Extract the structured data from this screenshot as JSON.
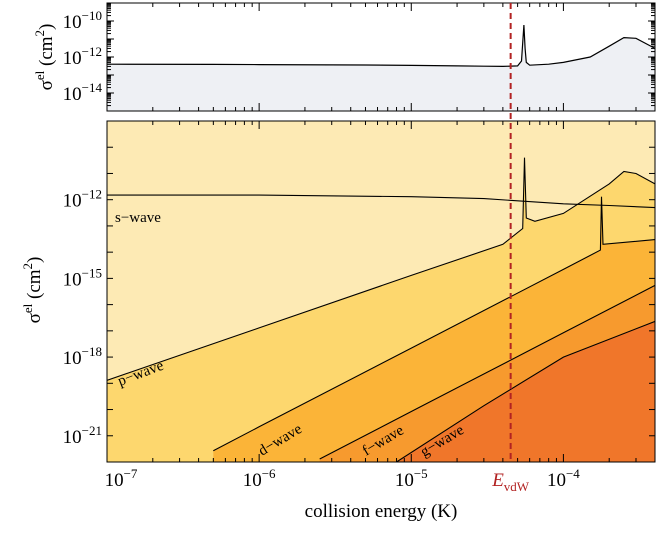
{
  "chart_data": [
    {
      "type": "area",
      "panel": "top",
      "ylabel": "σel (cm2)",
      "yscale": "log",
      "xscale": "log",
      "xlim": [
        1e-07,
        0.0004
      ],
      "ylim": [
        1e-15,
        1e-09
      ],
      "yticks": [
        {
          "value": 1e-10,
          "base": "10",
          "exp": "−10"
        },
        {
          "value": 1e-12,
          "base": "10",
          "exp": "−12"
        },
        {
          "value": 1e-14,
          "base": "10",
          "exp": "−14"
        }
      ],
      "series": [
        {
          "x": [
            1e-07,
            5e-07,
            1e-06,
            5e-06,
            1e-05,
            2e-05,
            3e-05,
            4e-05,
            5e-05,
            5.3e-05,
            5.5e-05,
            5.6e-05,
            5.7e-05,
            6e-05,
            8e-05,
            0.0001,
            0.00015,
            0.0002,
            0.00025,
            0.0003,
            0.0004
          ],
          "y": [
            4e-13,
            3.9e-13,
            3.8e-13,
            3.6e-13,
            3.4e-13,
            3.2e-13,
            3.1e-13,
            3e-13,
            3.2e-13,
            6e-13,
            6e-11,
            3e-12,
            5e-13,
            3.5e-13,
            4e-13,
            5e-13,
            1e-12,
            4e-12,
            1.2e-11,
            1.1e-11,
            3e-12
          ]
        }
      ],
      "colors": {
        "fill": "#eef0f4",
        "line": "#000000"
      }
    },
    {
      "type": "area",
      "panel": "bottom",
      "ylabel": "σel (cm2)",
      "xlabel": "collision energy (K)",
      "yscale": "log",
      "xscale": "log",
      "xlim": [
        1e-07,
        0.0004
      ],
      "ylim": [
        1e-22,
        1e-09
      ],
      "yticks": [
        {
          "value": 1e-12,
          "base": "10",
          "exp": "−12"
        },
        {
          "value": 1e-15,
          "base": "10",
          "exp": "−15"
        },
        {
          "value": 1e-18,
          "base": "10",
          "exp": "−18"
        },
        {
          "value": 1e-21,
          "base": "10",
          "exp": "−21"
        }
      ],
      "xticks": [
        {
          "value": 1e-07,
          "base": "10",
          "exp": "−7"
        },
        {
          "value": 1e-06,
          "base": "10",
          "exp": "−6"
        },
        {
          "value": 1e-05,
          "base": "10",
          "exp": "−5"
        },
        {
          "value": 0.0001,
          "base": "10",
          "exp": "−4"
        }
      ],
      "series": [
        {
          "name": "s−wave",
          "x": [
            1e-07,
            1e-06,
            1e-05,
            3e-05,
            0.0001,
            0.0002,
            0.0004
          ],
          "y": [
            1.5e-12,
            1.5e-12,
            1.3e-12,
            1.1e-12,
            7e-13,
            6e-13,
            5e-13
          ]
        },
        {
          "name": "p−wave",
          "x": [
            1e-07,
            1e-06,
            1e-05,
            4e-05,
            5.4e-05,
            5.55e-05,
            5.7e-05,
            6.5e-05,
            0.0001,
            0.0002,
            0.00025,
            0.0003,
            0.0004
          ],
          "y": [
            1.3e-19,
            1.3e-17,
            1.3e-15,
            2e-14,
            8e-14,
            4e-11,
            2e-13,
            1.5e-13,
            3e-13,
            4e-12,
            1.2e-11,
            1e-11,
            4e-12
          ]
        },
        {
          "name": "d−wave",
          "x": [
            5e-07,
            1e-06,
            1e-05,
            0.0001,
            0.000175,
            0.000178,
            0.000182,
            0.0004
          ],
          "y": [
            2.7e-22,
            2.2e-21,
            2.2e-18,
            2.2e-15,
            1.2e-14,
            1.3e-12,
            2e-14,
            3e-14
          ]
        },
        {
          "name": "f−wave",
          "x": [
            2.5e-06,
            1e-05,
            0.0001,
            0.0004
          ],
          "y": [
            1.3e-22,
            8.4e-21,
            8.4e-18,
            5.4e-16
          ]
        },
        {
          "name": "g−wave",
          "x": [
            8e-06,
            3e-05,
            0.0001,
            0.0004
          ],
          "y": [
            1e-22,
            1.4e-20,
            1e-18,
            2.3e-17
          ]
        }
      ],
      "colors": {
        "s": "#fdeab4",
        "p": "#fdd76e",
        "d": "#fbb438",
        "f": "#f79a2e",
        "g": "#f0762a"
      }
    }
  ],
  "vline": {
    "x": 4.5e-05,
    "color": "#b22222",
    "label_main": "E",
    "label_sub": "vdW"
  },
  "labels": {
    "ylabel_base": "σ",
    "ylabel_sup": "el",
    "ylabel_open": " (cm",
    "ylabel_sup2": "2",
    "ylabel_close": ")",
    "xlabel": "collision energy (K)",
    "s": "s−wave",
    "p": "p−wave",
    "d": "d−wave",
    "f": "f−wave",
    "g": "g−wave"
  }
}
